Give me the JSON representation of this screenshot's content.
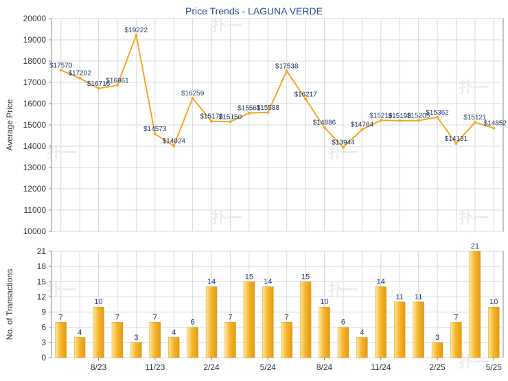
{
  "title": "Price Trends - LAGUNA VERDE",
  "watermark_text": "扑一",
  "colors": {
    "line": "#f5a623",
    "bar_light": "#fde9a4",
    "bar_mid": "#f5b731",
    "bar_dark": "#e59a10",
    "grid": "#d9d9d9",
    "axis": "#888888",
    "text": "#333333",
    "title": "#1f4e8c",
    "label": "#1f3a6b"
  },
  "chart_data": [
    {
      "type": "line",
      "ylabel": "Average Price",
      "ylim": [
        10000,
        20000
      ],
      "yticks": [
        10000,
        11000,
        12000,
        13000,
        14000,
        15000,
        16000,
        17000,
        18000,
        19000,
        20000
      ],
      "grid": true,
      "x_index": [
        0,
        1,
        2,
        3,
        4,
        5,
        6,
        7,
        8,
        9,
        10,
        11,
        12,
        13,
        14,
        15,
        16,
        17,
        18,
        19,
        20,
        21,
        22,
        23
      ],
      "values": [
        17570,
        17202,
        16716,
        16861,
        19222,
        14573,
        14024,
        16259,
        15173,
        15150,
        15561,
        15588,
        17538,
        16217,
        14886,
        13944,
        14784,
        15216,
        15198,
        15205,
        15362,
        14131,
        15121,
        14852
      ],
      "data_labels": [
        "$17570",
        "$17202",
        "$16716",
        "$16861",
        "$19222",
        "$14573",
        "$14024",
        "$16259",
        "$15173",
        "$15150",
        "$15561",
        "$15588",
        "$17538",
        "$16217",
        "$14886",
        "$13944",
        "$14784",
        "$15216",
        "$15198",
        "$15205",
        "$15362",
        "$14131",
        "$15121",
        "$14852"
      ]
    },
    {
      "type": "bar",
      "ylabel": "No. of Transactions",
      "ylim": [
        0,
        21
      ],
      "yticks": [
        0,
        3,
        6,
        9,
        12,
        15,
        18,
        21
      ],
      "grid": true,
      "x_index": [
        0,
        1,
        2,
        3,
        4,
        5,
        6,
        7,
        8,
        9,
        10,
        11,
        12,
        13,
        14,
        15,
        16,
        17,
        18,
        19,
        20,
        21,
        22,
        23
      ],
      "values": [
        7,
        4,
        10,
        7,
        3,
        7,
        4,
        6,
        14,
        7,
        15,
        14,
        7,
        15,
        10,
        6,
        4,
        14,
        11,
        11,
        3,
        7,
        21,
        10
      ],
      "data_labels": [
        "7",
        "4",
        "10",
        "7",
        "3",
        "7",
        "4",
        "6",
        "14",
        "7",
        "15",
        "14",
        "7",
        "15",
        "10",
        "6",
        "4",
        "14",
        "11",
        "11",
        "3",
        "7",
        "21",
        "10"
      ],
      "xticks": [
        {
          "index": 2,
          "label": "8/23"
        },
        {
          "index": 5,
          "label": "11/23"
        },
        {
          "index": 8,
          "label": "2/24"
        },
        {
          "index": 11,
          "label": "5/24"
        },
        {
          "index": 14,
          "label": "8/24"
        },
        {
          "index": 17,
          "label": "11/24"
        },
        {
          "index": 20,
          "label": "2/25"
        },
        {
          "index": 23,
          "label": "5/25"
        }
      ]
    }
  ]
}
